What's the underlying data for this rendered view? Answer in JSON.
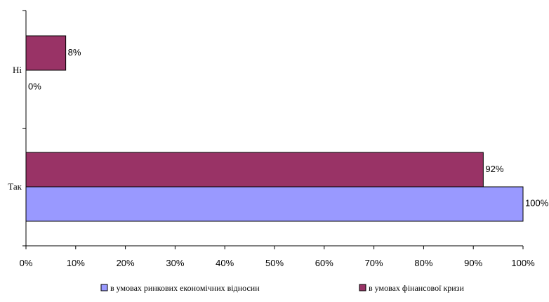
{
  "chart_data": {
    "type": "bar",
    "orientation": "horizontal",
    "categories": [
      "Ні",
      "Так"
    ],
    "series": [
      {
        "name": "в умовах ринкових економічних відносин",
        "values": [
          0,
          100
        ],
        "labels": [
          "0%",
          "100%"
        ],
        "color": "#9999ff"
      },
      {
        "name": "в умовах фінансової кризи",
        "values": [
          8,
          92
        ],
        "labels": [
          "8%",
          "92%"
        ],
        "color": "#993366"
      }
    ],
    "xlim": [
      0,
      100
    ],
    "xticks": [
      0,
      10,
      20,
      30,
      40,
      50,
      60,
      70,
      80,
      90,
      100
    ],
    "xtick_labels": [
      "0%",
      "10%",
      "20%",
      "30%",
      "40%",
      "50%",
      "60%",
      "70%",
      "80%",
      "90%",
      "100%"
    ],
    "grid": false,
    "legend_position": "bottom",
    "title": "",
    "xlabel": "",
    "ylabel": ""
  }
}
